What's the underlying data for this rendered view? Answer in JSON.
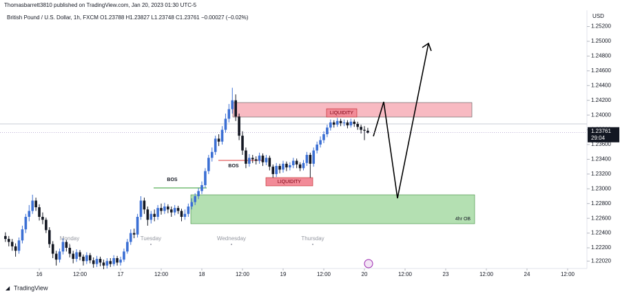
{
  "header": {
    "published": "Thomasbarrett3810 published on TradingView.com, Jan 20, 2023 01:30 UTC-5",
    "symbol": "British Pound / U.S. Dollar, 1h, FXCM  O1.23788  H1.23827  L1.23748  C1.23761  −0.00027 (−0.02%)",
    "currency": "USD",
    "countdown": "29:04",
    "brand": "TradingView"
  },
  "chart_data": {
    "type": "candlestick",
    "x": [
      -10,
      -9,
      -8,
      -7,
      -6,
      -5,
      -4,
      -3,
      -2,
      -1,
      0,
      1,
      2,
      3,
      4,
      5,
      6,
      7,
      8,
      9,
      10,
      11,
      12,
      13,
      14,
      15,
      16,
      17,
      18,
      19,
      20,
      21,
      22,
      23,
      24,
      25,
      26,
      27,
      28,
      29,
      30,
      31,
      32,
      33,
      34,
      35,
      36,
      37,
      38,
      39,
      40,
      41,
      42,
      43,
      44,
      45,
      46,
      47,
      48,
      49,
      50,
      51,
      52,
      53,
      54,
      55,
      56,
      57,
      58,
      59,
      60,
      61,
      62,
      63,
      64,
      65,
      66,
      67,
      68,
      69,
      70,
      71,
      72,
      73,
      74,
      75,
      76,
      77,
      78,
      79,
      80,
      81,
      82,
      83,
      84,
      85,
      86,
      87,
      88,
      89,
      90,
      91,
      92,
      93,
      94,
      95,
      96,
      97
    ],
    "open": [
      1.2236,
      1.2232,
      1.2228,
      1.2222,
      1.2216,
      1.223,
      1.2245,
      1.2262,
      1.227,
      1.2284,
      1.2275,
      1.2262,
      1.2258,
      1.2244,
      1.2225,
      1.2212,
      1.2204,
      1.2215,
      1.2228,
      1.222,
      1.2212,
      1.2205,
      1.2214,
      1.2208,
      1.2202,
      1.221,
      1.2203,
      1.2198,
      1.2205,
      1.22,
      1.2196,
      1.2202,
      1.2198,
      1.2206,
      1.22,
      1.2204,
      1.2215,
      1.2228,
      1.224,
      1.2238,
      1.2262,
      1.2284,
      1.2272,
      1.2258,
      1.2266,
      1.2262,
      1.2274,
      1.227,
      1.2276,
      1.2272,
      1.2268,
      1.2274,
      1.227,
      1.2262,
      1.2266,
      1.2276,
      1.2282,
      1.229,
      1.2297,
      1.2305,
      1.2324,
      1.2342,
      1.235,
      1.2368,
      1.2364,
      1.238,
      1.2395,
      1.2408,
      1.242,
      1.2398,
      1.2372,
      1.2352,
      1.2334,
      1.2342,
      1.234,
      1.2338,
      1.2345,
      1.2336,
      1.2342,
      1.233,
      1.232,
      1.2331,
      1.2326,
      1.2334,
      1.2329,
      1.2332,
      1.2338,
      1.2333,
      1.2328,
      1.2335,
      1.2346,
      1.2334,
      1.2352,
      1.236,
      1.2366,
      1.2374,
      1.2383,
      1.239,
      1.2387,
      1.2392,
      1.2389,
      1.239,
      1.2386,
      1.2391,
      1.2388,
      1.2384,
      1.238,
      1.23788
    ],
    "high": [
      1.2241,
      1.2236,
      1.2232,
      1.2226,
      1.2234,
      1.225,
      1.2266,
      1.2278,
      1.2292,
      1.2288,
      1.2279,
      1.2268,
      1.2261,
      1.2248,
      1.2229,
      1.2216,
      1.2219,
      1.2233,
      1.2231,
      1.2224,
      1.2216,
      1.2218,
      1.2217,
      1.2211,
      1.2214,
      1.2213,
      1.2207,
      1.2209,
      1.2208,
      1.2204,
      1.2206,
      1.2206,
      1.221,
      1.2209,
      1.2208,
      1.2219,
      1.2232,
      1.2245,
      1.2246,
      1.2266,
      1.229,
      1.2288,
      1.2276,
      1.227,
      1.2272,
      1.2278,
      1.228,
      1.2281,
      1.2279,
      1.2276,
      1.2278,
      1.2277,
      1.2273,
      1.2272,
      1.228,
      1.2287,
      1.2294,
      1.2301,
      1.231,
      1.2328,
      1.2346,
      1.2356,
      1.2372,
      1.2374,
      1.2385,
      1.2402,
      1.2415,
      1.2437,
      1.2428,
      1.2402,
      1.2378,
      1.2356,
      1.2347,
      1.2346,
      1.2344,
      1.2349,
      1.2348,
      1.2346,
      1.2345,
      1.2333,
      1.2335,
      1.2334,
      1.2338,
      1.2337,
      1.2336,
      1.2342,
      1.2341,
      1.2336,
      1.2339,
      1.235,
      1.2349,
      1.2356,
      1.2364,
      1.2371,
      1.2378,
      1.2387,
      1.2394,
      1.2393,
      1.2396,
      1.2395,
      1.2394,
      1.2393,
      1.2395,
      1.2394,
      1.2391,
      1.2387,
      1.2385,
      1.23827
    ],
    "low": [
      1.2228,
      1.2222,
      1.2216,
      1.2208,
      1.2212,
      1.2226,
      1.224,
      1.2256,
      1.2266,
      1.227,
      1.2257,
      1.2252,
      1.224,
      1.222,
      1.2206,
      1.2196,
      1.22,
      1.2211,
      1.2215,
      1.2207,
      1.2199,
      1.2201,
      1.2203,
      1.2196,
      1.2198,
      1.2199,
      1.2193,
      1.2194,
      1.2195,
      1.2191,
      1.2192,
      1.2194,
      1.2195,
      1.2196,
      1.2196,
      1.2201,
      1.2212,
      1.2224,
      1.2233,
      1.2234,
      1.2258,
      1.2266,
      1.225,
      1.2253,
      1.2256,
      1.2258,
      1.2265,
      1.2266,
      1.2267,
      1.2262,
      1.2264,
      1.2266,
      1.2256,
      1.2258,
      1.2262,
      1.2272,
      1.2278,
      1.2286,
      1.2293,
      1.2301,
      1.232,
      1.2337,
      1.2346,
      1.2358,
      1.236,
      1.2376,
      1.239,
      1.2402,
      1.2392,
      1.2366,
      1.2346,
      1.2328,
      1.233,
      1.2335,
      1.2333,
      1.2334,
      1.2331,
      1.2332,
      1.2325,
      1.2315,
      1.2316,
      1.2321,
      1.2322,
      1.2324,
      1.2325,
      1.2328,
      1.2328,
      1.2324,
      1.2325,
      1.2331,
      1.2315,
      1.233,
      1.2348,
      1.2356,
      1.2362,
      1.237,
      1.2379,
      1.2383,
      1.2384,
      1.2385,
      1.2385,
      1.2382,
      1.2383,
      1.2384,
      1.238,
      1.2375,
      1.2366,
      1.23748
    ],
    "close": [
      1.2232,
      1.2228,
      1.2222,
      1.2216,
      1.223,
      1.2245,
      1.2262,
      1.227,
      1.2284,
      1.2275,
      1.2262,
      1.2258,
      1.2244,
      1.2225,
      1.2212,
      1.2204,
      1.2215,
      1.2228,
      1.222,
      1.2212,
      1.2205,
      1.2214,
      1.2208,
      1.2202,
      1.221,
      1.2203,
      1.2198,
      1.2205,
      1.22,
      1.2196,
      1.2202,
      1.2198,
      1.2206,
      1.22,
      1.2204,
      1.2215,
      1.2228,
      1.224,
      1.2238,
      1.2262,
      1.2284,
      1.2272,
      1.2258,
      1.2266,
      1.2262,
      1.2274,
      1.227,
      1.2276,
      1.2272,
      1.2268,
      1.2274,
      1.227,
      1.2262,
      1.2266,
      1.2276,
      1.2282,
      1.229,
      1.2297,
      1.2305,
      1.2324,
      1.2342,
      1.235,
      1.2368,
      1.2364,
      1.238,
      1.2395,
      1.2408,
      1.242,
      1.2398,
      1.2372,
      1.2352,
      1.2334,
      1.2342,
      1.234,
      1.2338,
      1.2345,
      1.2336,
      1.2342,
      1.233,
      1.232,
      1.2331,
      1.2326,
      1.2334,
      1.2329,
      1.2332,
      1.2338,
      1.2333,
      1.2328,
      1.2335,
      1.2346,
      1.2334,
      1.2352,
      1.236,
      1.2366,
      1.2374,
      1.2383,
      1.239,
      1.2387,
      1.2392,
      1.2389,
      1.239,
      1.2386,
      1.2391,
      1.2388,
      1.2384,
      1.238,
      1.23788,
      1.23761
    ],
    "up_color": "#3b6fd4",
    "down_color": "#131722",
    "xlim": [
      -11.6,
      161.7
    ],
    "xticks": [
      {
        "value": 0,
        "label": "16"
      },
      {
        "value": 12,
        "label": "12:00"
      },
      {
        "value": 24,
        "label": "17"
      },
      {
        "value": 36,
        "label": "12:00"
      },
      {
        "value": 48,
        "label": "18"
      },
      {
        "value": 60,
        "label": "12:00"
      },
      {
        "value": 72,
        "label": "19"
      },
      {
        "value": 84,
        "label": "12:00"
      },
      {
        "value": 96,
        "label": "20"
      },
      {
        "value": 108,
        "label": "12:00"
      },
      {
        "value": 120,
        "label": "23"
      },
      {
        "value": 132,
        "label": "12:00"
      },
      {
        "value": 144,
        "label": "24"
      },
      {
        "value": 156,
        "label": "12:00"
      }
    ],
    "ylim": [
      1.2192,
      1.2542
    ],
    "yticks": [
      {
        "value": 1.2202,
        "label": "1.22020"
      },
      {
        "value": 1.222,
        "label": "1.22200"
      },
      {
        "value": 1.224,
        "label": "1.22400"
      },
      {
        "value": 1.226,
        "label": "1.22600"
      },
      {
        "value": 1.228,
        "label": "1.22800"
      },
      {
        "value": 1.23,
        "label": "1.23000"
      },
      {
        "value": 1.232,
        "label": "1.23200"
      },
      {
        "value": 1.234,
        "label": "1.23400"
      },
      {
        "value": 1.236,
        "label": "1.23600"
      },
      {
        "value": 1.238,
        "label": "1.23800"
      },
      {
        "value": 1.24,
        "label": "1.24000"
      },
      {
        "value": 1.242,
        "label": "1.24200"
      },
      {
        "value": 1.244,
        "label": "1.24400"
      },
      {
        "value": 1.246,
        "label": "1.24600"
      },
      {
        "value": 1.248,
        "label": "1.24800"
      },
      {
        "value": 1.25,
        "label": "1.25000"
      },
      {
        "value": 1.252,
        "label": "1.25200"
      }
    ],
    "session_labels": [
      "Monday",
      "Tuesday",
      "Wednesday",
      "Thursday"
    ],
    "annotations": {
      "bos_1": "BOS",
      "bos_2": "BOS",
      "liquidity_1": "LIQUIDITY",
      "liquidity_2": "LIQUIDITY",
      "order_block": "4hr OB"
    }
  }
}
